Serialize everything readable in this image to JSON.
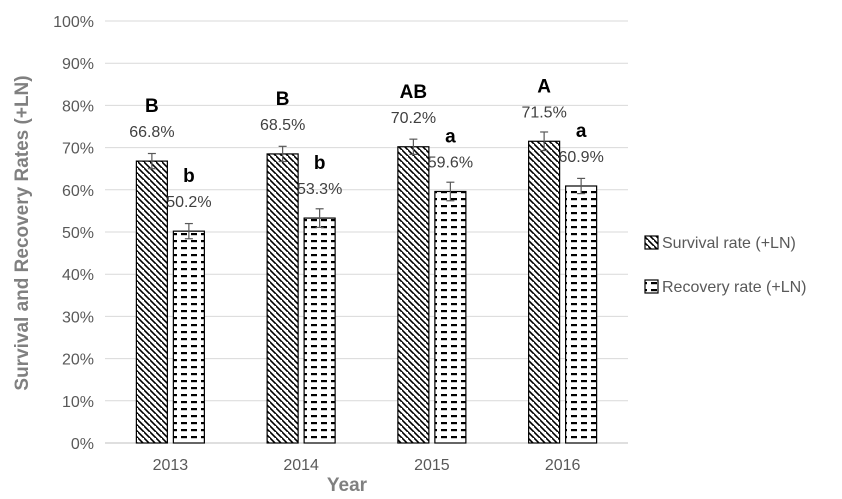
{
  "chart_data": {
    "type": "bar",
    "categories": [
      "2013",
      "2014",
      "2015",
      "2016"
    ],
    "series": [
      {
        "name": "Survival rate (+LN)",
        "values": [
          66.8,
          68.5,
          70.2,
          71.5
        ],
        "value_labels": [
          "66.8%",
          "68.5%",
          "70.2%",
          "71.5%"
        ],
        "significance": [
          "B",
          "B",
          "AB",
          "A"
        ],
        "error": [
          1.8,
          1.8,
          1.8,
          2.2
        ],
        "pattern": "diagonal-hatch"
      },
      {
        "name": "Recovery rate (+LN)",
        "values": [
          50.2,
          53.3,
          59.6,
          60.9
        ],
        "value_labels": [
          "50.2%",
          "53.3%",
          "59.6%",
          "60.9%"
        ],
        "significance": [
          "b",
          "b",
          "a",
          "a"
        ],
        "error": [
          1.8,
          2.2,
          2.2,
          1.8
        ],
        "pattern": "dashed-horizontal"
      }
    ],
    "title": "",
    "xlabel": "Year",
    "ylabel": "Survival and Recovery Rates (+LN)",
    "ylim": [
      0,
      100
    ],
    "yticks": [
      "0%",
      "10%",
      "20%",
      "30%",
      "40%",
      "50%",
      "60%",
      "70%",
      "80%",
      "90%",
      "100%"
    ],
    "grid": true,
    "legend": "right",
    "colors": {
      "bar_stroke": "#000000",
      "bar_fill": "#ffffff",
      "grid": "#d9d9d9",
      "axis_text": "#595959",
      "axis_title": "#808080"
    }
  }
}
